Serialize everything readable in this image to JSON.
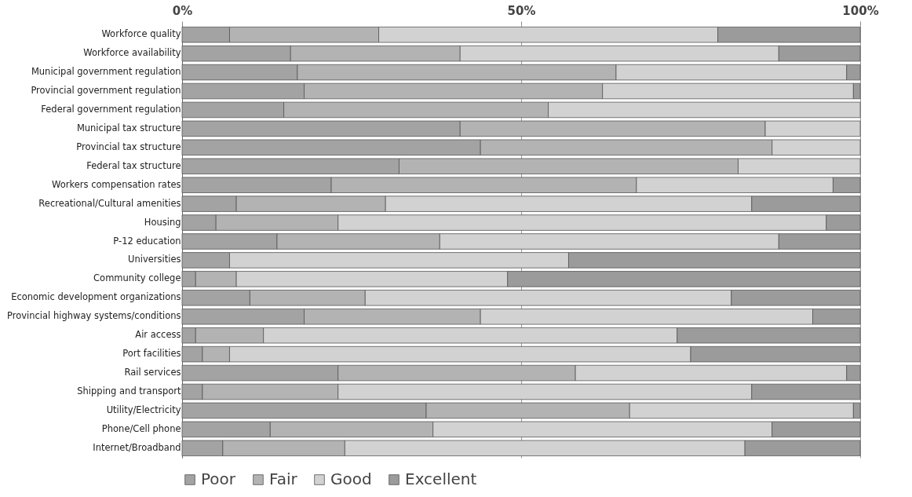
{
  "chart_data": {
    "type": "bar",
    "orientation": "horizontal",
    "stacked": true,
    "categories": [
      "Workforce quality",
      "Workforce availability",
      "Municipal government regulation",
      "Provincial government regulation",
      "Federal government regulation",
      "Municipal tax structure",
      "Provincial tax structure",
      "Federal tax structure",
      "Workers compensation rates",
      "Recreational/Cultural amenities",
      "Housing",
      "P-12 education",
      "Universities",
      "Community college",
      "Economic development organizations",
      "Provincial highway systems/conditions",
      "Air access",
      "Port facilities",
      "Rail services",
      "Shipping and transport",
      "Utility/Electricity",
      "Phone/Cell phone",
      "Internet/Broadband"
    ],
    "series": [
      {
        "name": "Poor",
        "color": "#a3a3a3",
        "values": [
          7,
          16,
          17,
          18,
          15,
          41,
          44,
          32,
          22,
          8,
          5,
          14,
          7,
          2,
          10,
          18,
          2,
          3,
          23,
          3,
          36,
          13,
          6
        ]
      },
      {
        "name": "Fair",
        "color": "#b3b3b3",
        "values": [
          22,
          25,
          47,
          44,
          39,
          45,
          43,
          50,
          45,
          22,
          18,
          24,
          0,
          6,
          17,
          26,
          10,
          4,
          35,
          20,
          30,
          24,
          18
        ]
      },
      {
        "name": "Good",
        "color": "#d2d2d2",
        "values": [
          50,
          47,
          34,
          37,
          46,
          14,
          13,
          18,
          29,
          54,
          72,
          50,
          50,
          40,
          54,
          49,
          61,
          68,
          40,
          61,
          33,
          50,
          59
        ]
      },
      {
        "name": "Excellent",
        "color": "#9b9b9b",
        "values": [
          21,
          12,
          2,
          1,
          0,
          0,
          0,
          0,
          4,
          16,
          5,
          12,
          43,
          52,
          19,
          7,
          27,
          25,
          2,
          16,
          1,
          13,
          17
        ]
      }
    ],
    "xlim": [
      0,
      100
    ],
    "xticks": [
      {
        "value": 0,
        "label": "0%"
      },
      {
        "value": 50,
        "label": "50%"
      },
      {
        "value": 100,
        "label": "100%"
      }
    ],
    "grid": "x",
    "legend": "bottom"
  }
}
